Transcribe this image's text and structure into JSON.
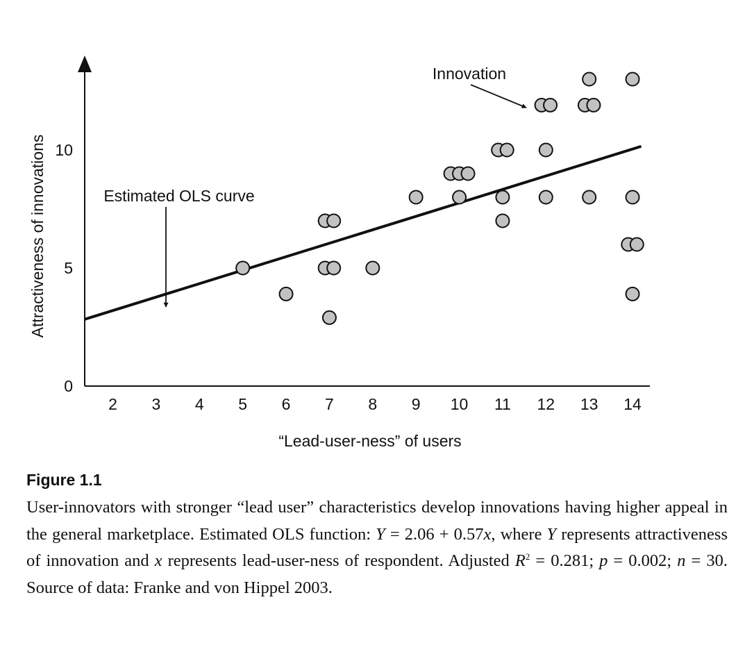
{
  "chart_data": {
    "type": "scatter",
    "xlabel": "“Lead-user-ness” of users",
    "ylabel": "Attractiveness of innovations",
    "xlim": [
      1.35,
      14.4
    ],
    "ylim": [
      0,
      14
    ],
    "x_ticks": [
      2,
      3,
      4,
      5,
      6,
      7,
      8,
      9,
      10,
      11,
      12,
      13,
      14
    ],
    "y_ticks": [
      0,
      5,
      10
    ],
    "grid": false,
    "points": [
      {
        "x": 5,
        "y": 5
      },
      {
        "x": 6,
        "y": 3.9
      },
      {
        "x": 6.9,
        "y": 7
      },
      {
        "x": 7.1,
        "y": 7
      },
      {
        "x": 6.9,
        "y": 5
      },
      {
        "x": 7.1,
        "y": 5
      },
      {
        "x": 7,
        "y": 2.9
      },
      {
        "x": 8,
        "y": 5
      },
      {
        "x": 9,
        "y": 8
      },
      {
        "x": 9.8,
        "y": 9
      },
      {
        "x": 10,
        "y": 9
      },
      {
        "x": 10.2,
        "y": 9
      },
      {
        "x": 10,
        "y": 8
      },
      {
        "x": 10.9,
        "y": 10
      },
      {
        "x": 11.1,
        "y": 10
      },
      {
        "x": 11,
        "y": 8
      },
      {
        "x": 11,
        "y": 7
      },
      {
        "x": 11.9,
        "y": 11.9
      },
      {
        "x": 12.1,
        "y": 11.9
      },
      {
        "x": 12,
        "y": 10
      },
      {
        "x": 12,
        "y": 8
      },
      {
        "x": 12.9,
        "y": 11.9
      },
      {
        "x": 13.1,
        "y": 11.9
      },
      {
        "x": 13,
        "y": 13
      },
      {
        "x": 13,
        "y": 8
      },
      {
        "x": 14,
        "y": 13
      },
      {
        "x": 14,
        "y": 8
      },
      {
        "x": 13.9,
        "y": 6
      },
      {
        "x": 14.1,
        "y": 6
      },
      {
        "x": 14,
        "y": 3.9
      }
    ],
    "fit_line": {
      "intercept": 2.06,
      "slope": 0.57
    },
    "annotations": [
      {
        "text": "Innovation",
        "target": {
          "x": 11.9,
          "y": 11.9
        }
      },
      {
        "text": "Estimated OLS curve",
        "target": {
          "x": 3.3,
          "y": 3.6
        }
      }
    ],
    "colors": {
      "marker_fill": "#c2c2c2",
      "ink": "#111111"
    }
  },
  "caption": {
    "figure_label": "Figure 1.1",
    "text_1": "User-innovators with stronger “lead user” characteristics develop innovations having higher appeal in the general marketplace. Estimated OLS function: ",
    "var_Y_1": "Y",
    "text_2": " = 2.06 + 0.57",
    "var_x_1": "x",
    "text_3": ", where ",
    "var_Y_2": "Y",
    "text_4": " represents attractiveness of innovation and ",
    "var_x_2": "x",
    "text_5": " represents lead-user-ness of respondent. Adjusted ",
    "var_R": "R",
    "sup_2": "2",
    "text_6": " = 0.281; ",
    "var_p": "p",
    "text_7": " = 0.002; ",
    "var_n": "n",
    "text_8": " = 30. Source of data: Franke and von Hippel 2003."
  }
}
